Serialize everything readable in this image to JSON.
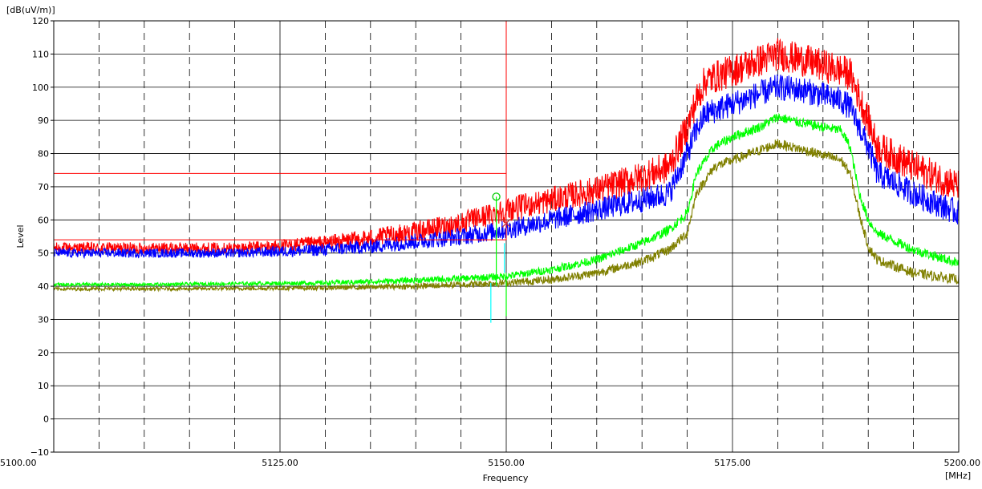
{
  "chart_data": {
    "type": "line",
    "title": "",
    "xlabel": "Frequency",
    "ylabel": "Level",
    "x_unit": "[MHz]",
    "y_unit": "[dB(uV/m)]",
    "xlim": [
      5100,
      5200
    ],
    "ylim": [
      -10,
      120
    ],
    "x_major_ticks": [
      5100,
      5125,
      5150,
      5175,
      5200
    ],
    "x_tick_labels": [
      "5100.00",
      "5125.00",
      "5150.00",
      "5175.00",
      "5200.00"
    ],
    "x_minor_dashed_gridlines": [
      5105,
      5110,
      5115,
      5120,
      5130,
      5135,
      5140,
      5145,
      5155,
      5160,
      5165,
      5170,
      5180,
      5185,
      5190,
      5195
    ],
    "y_ticks": [
      -10,
      0,
      10,
      20,
      30,
      40,
      50,
      60,
      70,
      80,
      90,
      100,
      110,
      120
    ],
    "y_tick_labels": [
      "−10",
      "0",
      "10",
      "20",
      "30",
      "40",
      "50",
      "60",
      "70",
      "80",
      "90",
      "100",
      "110",
      "120"
    ],
    "grid": true,
    "series": [
      {
        "color": "#ff0000",
        "noise_band": 5,
        "x": [
          5100,
          5110,
          5120,
          5125,
          5130,
          5135,
          5140,
          5145,
          5150,
          5155,
          5160,
          5165,
          5168,
          5170,
          5171,
          5172,
          5175,
          5178,
          5180,
          5183,
          5187,
          5188,
          5190,
          5191,
          5195,
          5200
        ],
        "y": [
          51.5,
          51.5,
          51.5,
          52,
          53,
          54.5,
          56.5,
          59,
          63,
          66,
          69,
          73,
          76,
          88,
          96,
          102,
          105,
          108,
          110,
          108,
          105,
          104,
          90,
          82,
          76,
          70
        ]
      },
      {
        "color": "#0000ff",
        "noise_band": 4,
        "x": [
          5100,
          5110,
          5120,
          5125,
          5130,
          5135,
          5140,
          5145,
          5150,
          5155,
          5160,
          5165,
          5168,
          5170,
          5171,
          5172,
          5175,
          5178,
          5180,
          5183,
          5187,
          5188,
          5190,
          5191,
          5195,
          5200
        ],
        "y": [
          50,
          50,
          50,
          50.5,
          51,
          52,
          53.5,
          55,
          57,
          60,
          63,
          66,
          68,
          80,
          87,
          92,
          95,
          98,
          100,
          99,
          96,
          94,
          82,
          74,
          68,
          62
        ]
      },
      {
        "color": "#00ff00",
        "noise_band": 1.5,
        "x": [
          5100,
          5110,
          5120,
          5130,
          5140,
          5145,
          5150,
          5155,
          5160,
          5165,
          5168,
          5170,
          5171,
          5173,
          5175,
          5178,
          5180,
          5183,
          5187,
          5188,
          5189,
          5190,
          5191,
          5195,
          5200
        ],
        "y": [
          40.5,
          40.5,
          40.8,
          41,
          41.8,
          42.3,
          43,
          45,
          48,
          53,
          57,
          62,
          74,
          82,
          85,
          88,
          91,
          89,
          87,
          82,
          68,
          60,
          56,
          51,
          47
        ]
      },
      {
        "color": "#808000",
        "noise_band": 1.5,
        "x": [
          5100,
          5110,
          5120,
          5130,
          5140,
          5145,
          5150,
          5155,
          5160,
          5165,
          5168,
          5170,
          5171,
          5173,
          5175,
          5178,
          5180,
          5183,
          5187,
          5188,
          5189,
          5190,
          5191,
          5195,
          5200
        ],
        "y": [
          39.2,
          39.2,
          39.3,
          39.5,
          40,
          40.5,
          41,
          42,
          44,
          47.5,
          51,
          56,
          68,
          76,
          78,
          81,
          83,
          81,
          78,
          74,
          62,
          52,
          48,
          44,
          42
        ]
      }
    ],
    "limit_lines": [
      {
        "color": "#ff0000",
        "x": [
          5100,
          5150
        ],
        "y": [
          74,
          74
        ]
      },
      {
        "color": "#ff0000",
        "x": [
          5100,
          5150
        ],
        "y": [
          54,
          54
        ]
      },
      {
        "color": "#ff0000",
        "x": [
          5150,
          5150
        ],
        "y": [
          54,
          120
        ]
      }
    ],
    "markers": [
      {
        "type": "circle",
        "color": "#00cc00",
        "x": 5148.9,
        "y": 67
      },
      {
        "type": "x",
        "color": "#cc3333",
        "x": 5150,
        "y": 59
      }
    ],
    "marker_lines": [
      {
        "color": "#00ff00",
        "x": 5148.9,
        "y": [
          40,
          67
        ]
      },
      {
        "color": "#00ffff",
        "x": 5148.3,
        "y": [
          29,
          41
        ]
      },
      {
        "color": "#00ff00",
        "x": 5150,
        "y": [
          31,
          44
        ]
      },
      {
        "color": "#00ffff",
        "x": 5149.8,
        "y": [
          44,
          53
        ]
      }
    ]
  },
  "colors": {
    "plot_border": "#000000",
    "solid_grid": "#000000",
    "dashed_grid": "#000000"
  }
}
